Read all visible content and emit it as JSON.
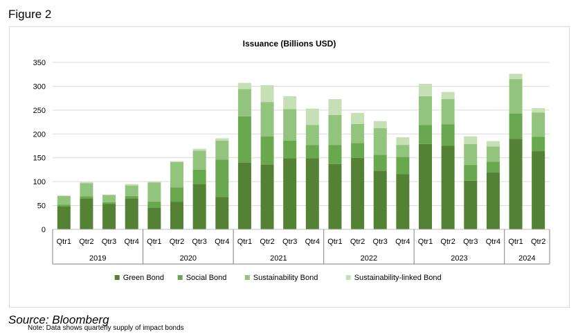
{
  "figure_label": "Figure 2",
  "note": "Note: Data shows quarterly supply of impact bonds",
  "source": "Source: Bloomberg",
  "chart_data": {
    "type": "bar",
    "stacked": true,
    "title": "Issuance (Billions USD)",
    "xlabel": "",
    "ylabel": "",
    "ylim": [
      0,
      350
    ],
    "yticks": [
      0,
      50,
      100,
      150,
      200,
      250,
      300,
      350
    ],
    "grid": true,
    "legend_position": "bottom",
    "categories": [
      "Qtr1",
      "Qtr2",
      "Qtr3",
      "Qtr4",
      "Qtr1",
      "Qtr2",
      "Qtr3",
      "Qtr4",
      "Qtr1",
      "Qtr2",
      "Qtr3",
      "Qtr4",
      "Qtr1",
      "Qtr2",
      "Qtr3",
      "Qtr4",
      "Qtr1",
      "Qtr2",
      "Qtr3",
      "Qtr4",
      "Qtr1",
      "Qtr2"
    ],
    "groups": [
      {
        "label": "2019",
        "count": 4
      },
      {
        "label": "2020",
        "count": 4
      },
      {
        "label": "2021",
        "count": 4
      },
      {
        "label": "2022",
        "count": 4
      },
      {
        "label": "2023",
        "count": 4
      },
      {
        "label": "2024",
        "count": 2
      }
    ],
    "series": [
      {
        "name": "Green Bond",
        "color": "#548235",
        "values": [
          48,
          65,
          53,
          65,
          45,
          58,
          95,
          68,
          140,
          136,
          149,
          149,
          137,
          150,
          123,
          116,
          179,
          175,
          102,
          119,
          190,
          164
        ]
      },
      {
        "name": "Social Bond",
        "color": "#6aa84f",
        "values": [
          4,
          4,
          4,
          5,
          13,
          30,
          30,
          78,
          97,
          59,
          37,
          28,
          40,
          31,
          33,
          36,
          40,
          45,
          33,
          23,
          53,
          30
        ]
      },
      {
        "name": "Sustainability Bond",
        "color": "#93c47d",
        "values": [
          18,
          28,
          15,
          22,
          40,
          53,
          40,
          40,
          57,
          72,
          66,
          42,
          63,
          40,
          56,
          25,
          60,
          53,
          44,
          32,
          72,
          51
        ]
      },
      {
        "name": "Sustainability-linked Bond",
        "color": "#c5e0b4",
        "values": [
          1,
          2,
          1,
          3,
          2,
          2,
          4,
          5,
          13,
          35,
          27,
          34,
          33,
          23,
          15,
          16,
          26,
          15,
          16,
          11,
          11,
          9
        ]
      }
    ]
  }
}
